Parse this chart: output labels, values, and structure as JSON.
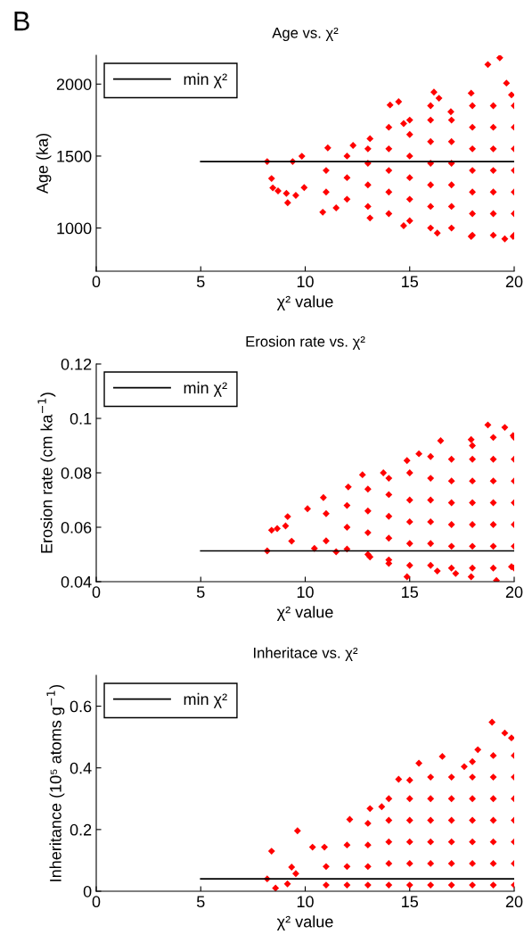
{
  "chart_data": [
    {
      "type": "scatter",
      "title": "Age vs. χ²",
      "xlabel": "χ² value",
      "ylabel": "Age (ka)",
      "annotations": [
        "B"
      ],
      "legend": "top left",
      "marker": "diamond",
      "xlim": [
        0,
        20
      ],
      "xticks": [
        0,
        5,
        10,
        15,
        20
      ],
      "ylim": [
        700,
        2200
      ],
      "yticks": [
        1000,
        1500,
        2000
      ],
      "series": [
        {
          "color": "#ff0000",
          "x": [
            8.18,
            8.39,
            8.45,
            8.7,
            9.16,
            9.1,
            9.55,
            9.4,
            9.84,
            9.95,
            11.08,
            12.29,
            14.06,
            14.47,
            16.16,
            16.4,
            17.94,
            18.74,
            19.31,
            19.63,
            19.87,
            16.97,
            14.71,
            13.1,
            10.84,
            11.48,
            13.1,
            14.71,
            16.32,
            17.94,
            19.55,
            19.95,
            11,
            11,
            12,
            12,
            12,
            13,
            13,
            13,
            13,
            14,
            14,
            14,
            14,
            14,
            15,
            15,
            15,
            15,
            15,
            15,
            16,
            16,
            16,
            16,
            16,
            16,
            16,
            17,
            17,
            17,
            17,
            17,
            17,
            18,
            18,
            18,
            18,
            18,
            18,
            18,
            19,
            19,
            19,
            19,
            19,
            19,
            19,
            20,
            20,
            20,
            20,
            20,
            20,
            20
          ],
          "values": [
            1462,
            1344,
            1279,
            1258,
            1176,
            1241,
            1227,
            1462,
            1499,
            1281,
            1557,
            1574,
            1855,
            1878,
            1944,
            1902,
            1937,
            2136,
            2183,
            2007,
            1925,
            1808,
            1726,
            1621,
            1110,
            1140,
            1070,
            1016,
            965,
            941,
            925,
            941,
            1250,
            1400,
            1200,
            1350,
            1500,
            1150,
            1300,
            1450,
            1550,
            1100,
            1250,
            1400,
            1550,
            1700,
            1050,
            1200,
            1350,
            1500,
            1650,
            1750,
            1000,
            1150,
            1300,
            1450,
            1600,
            1750,
            1850,
            1000,
            1150,
            1300,
            1450,
            1600,
            1750,
            950,
            1100,
            1250,
            1400,
            1550,
            1700,
            1850,
            950,
            1100,
            1250,
            1400,
            1550,
            1700,
            1850,
            950,
            1100,
            1250,
            1400,
            1550,
            1700,
            1850
          ]
        },
        {
          "type": "line",
          "name": "min χ²",
          "color": "#000000",
          "marker": "none",
          "x": [
            5,
            20
          ],
          "values": [
            1462,
            1462
          ]
        }
      ]
    },
    {
      "type": "scatter",
      "title": "Erosion rate vs. χ²",
      "xlabel": "χ² value",
      "ylabel": "Erosion rate (cm ka$^{−1}$)",
      "legend": "top left",
      "marker": "diamond",
      "xlim": [
        0,
        20
      ],
      "xticks": [
        0,
        5,
        10,
        15,
        20
      ],
      "ylim": [
        0.04,
        0.12
      ],
      "yticks": [
        0.04,
        0.06,
        0.08,
        0.1,
        0.12
      ],
      "series": [
        {
          "color": "#ff0000",
          "x": [
            8.18,
            8.39,
            8.66,
            9.16,
            9.06,
            9.35,
            10.11,
            10.44,
            10.87,
            12.06,
            12.74,
            13.74,
            14.87,
            15.44,
            16.48,
            17.94,
            18.74,
            19.55,
            19.95,
            11.48,
            13.1,
            14.0,
            14.87,
            16.32,
            17.2,
            17.94,
            19.15,
            19.87,
            11,
            11,
            12,
            12,
            12,
            13,
            13,
            13,
            13,
            14,
            14,
            14,
            14,
            14,
            15,
            15,
            15,
            15,
            15,
            16,
            16,
            16,
            16,
            16,
            16,
            17,
            17,
            17,
            17,
            17,
            17,
            18,
            18,
            18,
            18,
            18,
            18,
            18,
            19,
            19,
            19,
            19,
            19,
            19,
            19,
            20,
            20,
            20,
            20,
            20,
            20,
            20
          ],
          "values": [
            0.0513,
            0.0589,
            0.0595,
            0.0639,
            0.0605,
            0.0549,
            0.0668,
            0.0522,
            0.0709,
            0.0748,
            0.0793,
            0.08,
            0.0845,
            0.087,
            0.0918,
            0.0922,
            0.0976,
            0.0967,
            0.0937,
            0.051,
            0.0491,
            0.0467,
            0.0418,
            0.0439,
            0.043,
            0.0418,
            0.0404,
            0.0455,
            0.055,
            0.065,
            0.052,
            0.06,
            0.068,
            0.05,
            0.058,
            0.066,
            0.074,
            0.048,
            0.056,
            0.064,
            0.072,
            0.078,
            0.046,
            0.054,
            0.062,
            0.07,
            0.08,
            0.046,
            0.054,
            0.062,
            0.07,
            0.078,
            0.086,
            0.045,
            0.053,
            0.061,
            0.069,
            0.077,
            0.085,
            0.045,
            0.053,
            0.061,
            0.069,
            0.077,
            0.085,
            0.09,
            0.045,
            0.053,
            0.061,
            0.069,
            0.077,
            0.085,
            0.093,
            0.045,
            0.053,
            0.061,
            0.069,
            0.077,
            0.085,
            0.093
          ]
        },
        {
          "type": "line",
          "name": "min χ²",
          "color": "#000000",
          "marker": "none",
          "x": [
            5,
            20
          ],
          "values": [
            0.0513,
            0.0513
          ]
        }
      ]
    },
    {
      "type": "scatter",
      "title": "Inheritace vs. χ²",
      "xlabel": "χ² value",
      "ylabel": "Inheritance (10⁵ atoms g$^{−1}$)",
      "legend": "top left",
      "marker": "diamond",
      "xlim": [
        0,
        20
      ],
      "xticks": [
        0,
        5,
        10,
        15,
        20
      ],
      "ylim": [
        0,
        0.7
      ],
      "yticks": [
        0,
        0.2,
        0.4,
        0.6
      ],
      "series": [
        {
          "color": "#ff0000",
          "x": [
            8.18,
            8.39,
            8.58,
            9.63,
            9.35,
            9.55,
            9.15,
            10.35,
            10.92,
            12.13,
            13.1,
            13.66,
            14.47,
            15.44,
            16.56,
            17.61,
            18.26,
            18.94,
            19.55,
            19.87,
            11,
            11,
            12,
            12,
            12,
            13,
            13,
            13,
            13,
            14,
            14,
            14,
            14,
            14,
            15,
            15,
            15,
            15,
            15,
            15,
            16,
            16,
            16,
            16,
            16,
            16,
            17,
            17,
            17,
            17,
            17,
            17,
            18,
            18,
            18,
            18,
            18,
            18,
            18,
            19,
            19,
            19,
            19,
            19,
            19,
            19,
            20,
            20,
            20,
            20,
            20,
            20,
            20
          ],
          "values": [
            0.04,
            0.13,
            0.01,
            0.196,
            0.078,
            0.057,
            0.024,
            0.143,
            0.143,
            0.233,
            0.268,
            0.274,
            0.363,
            0.415,
            0.437,
            0.404,
            0.459,
            0.548,
            0.513,
            0.497,
            0.02,
            0.08,
            0.02,
            0.08,
            0.15,
            0.02,
            0.08,
            0.15,
            0.22,
            0.02,
            0.09,
            0.16,
            0.23,
            0.3,
            0.02,
            0.09,
            0.16,
            0.23,
            0.3,
            0.36,
            0.02,
            0.09,
            0.16,
            0.23,
            0.3,
            0.37,
            0.02,
            0.09,
            0.16,
            0.23,
            0.3,
            0.37,
            0.02,
            0.09,
            0.16,
            0.23,
            0.3,
            0.37,
            0.42,
            0.02,
            0.09,
            0.16,
            0.23,
            0.3,
            0.37,
            0.44,
            0.02,
            0.09,
            0.16,
            0.23,
            0.3,
            0.37,
            0.44
          ]
        },
        {
          "type": "line",
          "name": "min χ²",
          "color": "#000000",
          "marker": "none",
          "x": [
            5,
            20
          ],
          "values": [
            0.04,
            0.04
          ]
        }
      ]
    }
  ]
}
